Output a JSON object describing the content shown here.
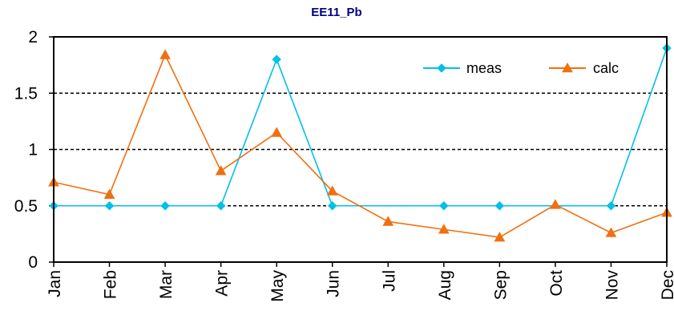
{
  "chart_data": {
    "type": "line",
    "title": "EE11_Pb",
    "categories": [
      "Jan",
      "Feb",
      "Mar",
      "Apr",
      "May",
      "Jun",
      "Jul",
      "Aug",
      "Sep",
      "Oct",
      "Nov",
      "Dec"
    ],
    "ylim": [
      0,
      2
    ],
    "yticks": [
      "0",
      "0.5",
      "1",
      "1.5",
      "2"
    ],
    "ytick_values": [
      0,
      0.5,
      1,
      1.5,
      2
    ],
    "grid": "horizontal dashed",
    "legend_position": "top-right",
    "series": [
      {
        "name": "meas",
        "color": "#00C0E8",
        "marker": "diamond",
        "values": [
          0.5,
          0.5,
          0.5,
          0.5,
          1.8,
          0.5,
          null,
          0.5,
          0.5,
          null,
          0.5,
          1.9
        ]
      },
      {
        "name": "calc",
        "color": "#F07010",
        "marker": "triangle",
        "values": [
          0.71,
          0.6,
          1.84,
          0.81,
          1.15,
          0.63,
          0.36,
          0.29,
          0.22,
          0.51,
          0.26,
          0.44
        ]
      }
    ]
  }
}
